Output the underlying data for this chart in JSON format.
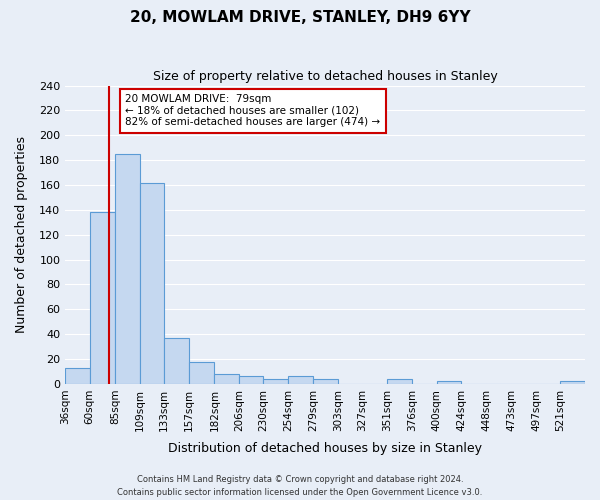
{
  "title": "20, MOWLAM DRIVE, STANLEY, DH9 6YY",
  "subtitle": "Size of property relative to detached houses in Stanley",
  "xlabel": "Distribution of detached houses by size in Stanley",
  "ylabel": "Number of detached properties",
  "bin_labels": [
    "36sqm",
    "60sqm",
    "85sqm",
    "109sqm",
    "133sqm",
    "157sqm",
    "182sqm",
    "206sqm",
    "230sqm",
    "254sqm",
    "279sqm",
    "303sqm",
    "327sqm",
    "351sqm",
    "376sqm",
    "400sqm",
    "424sqm",
    "448sqm",
    "473sqm",
    "497sqm",
    "521sqm"
  ],
  "bar_heights": [
    13,
    138,
    185,
    162,
    37,
    18,
    8,
    6,
    4,
    6,
    4,
    0,
    0,
    4,
    0,
    2,
    0,
    0,
    0,
    0,
    2
  ],
  "bin_edges": [
    36,
    60,
    85,
    109,
    133,
    157,
    182,
    206,
    230,
    254,
    279,
    303,
    327,
    351,
    376,
    400,
    424,
    448,
    473,
    497,
    521,
    545
  ],
  "bar_color": "#c5d8f0",
  "bar_edge_color": "#5b9bd5",
  "vline_x": 79,
  "vline_color": "#cc0000",
  "annotation_title": "20 MOWLAM DRIVE:  79sqm",
  "annotation_line1": "← 18% of detached houses are smaller (102)",
  "annotation_line2": "82% of semi-detached houses are larger (474) →",
  "annotation_box_color": "#ffffff",
  "annotation_box_edge": "#cc0000",
  "ylim": [
    0,
    240
  ],
  "yticks": [
    0,
    20,
    40,
    60,
    80,
    100,
    120,
    140,
    160,
    180,
    200,
    220,
    240
  ],
  "background_color": "#e8eef7",
  "grid_color": "#ffffff",
  "footer_line1": "Contains HM Land Registry data © Crown copyright and database right 2024.",
  "footer_line2": "Contains public sector information licensed under the Open Government Licence v3.0."
}
